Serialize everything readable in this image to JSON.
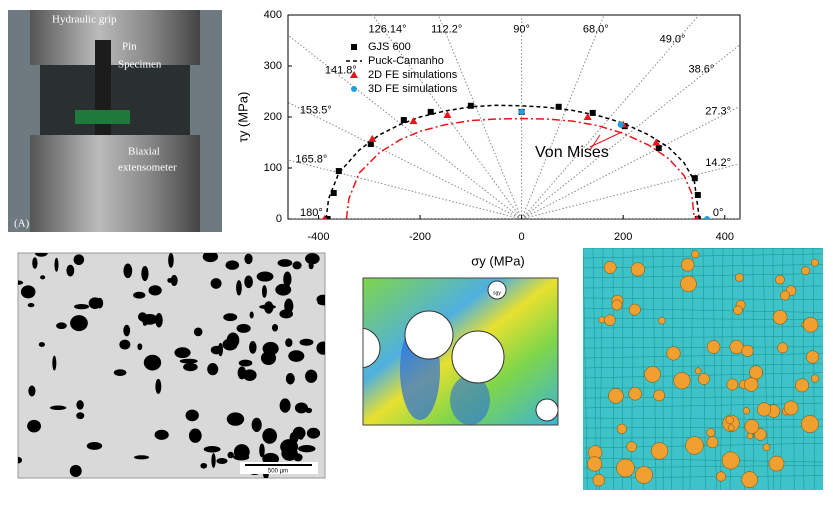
{
  "photo": {
    "labels": [
      "Hydraulic grip",
      "Pin",
      "Specimen",
      "Biaxial",
      "extensometer",
      "(A)"
    ]
  },
  "chart_data": {
    "type": "scatter",
    "xlabel": "σy (MPa)",
    "ylabel": "τy (MPa)",
    "xlim": [
      -460,
      430
    ],
    "ylim": [
      0,
      400
    ],
    "xticks": [
      -400,
      -200,
      0,
      200,
      400
    ],
    "yticks": [
      0,
      100,
      200,
      300,
      400
    ],
    "series": [
      {
        "name": "GJS 600",
        "color": "#000000",
        "kind": "square",
        "x": [
          -382,
          -370,
          -360,
          -297,
          -232,
          -179,
          -100,
          0,
          73,
          140,
          203,
          270,
          341,
          347,
          347
        ],
        "values": [
          0,
          51,
          94,
          147,
          194,
          210,
          222,
          210,
          220,
          208,
          182,
          139,
          80,
          47,
          0
        ]
      },
      {
        "name": "Puck-Camanho",
        "color": "#000000",
        "kind": "dash",
        "x": [
          -385,
          -380,
          -360,
          -320,
          -280,
          -240,
          -200,
          -150,
          -100,
          -50,
          0,
          50,
          100,
          150,
          200,
          250,
          290,
          320,
          340,
          350
        ],
        "values": [
          0,
          40,
          90,
          135,
          165,
          185,
          200,
          212,
          220,
          223,
          222,
          219,
          213,
          203,
          188,
          165,
          140,
          110,
          75,
          0
        ]
      },
      {
        "name": "2D FE simulations",
        "color": "#e8141b",
        "kind": "triangle",
        "x": [
          -388,
          -294,
          -213,
          -146,
          130,
          200,
          265,
          345
        ],
        "values": [
          0,
          157,
          192,
          204,
          200,
          185,
          150,
          0
        ]
      },
      {
        "name": "3D FE simulations",
        "color": "#1ba1e2",
        "kind": "circle",
        "x": [
          0,
          195,
          365
        ],
        "values": [
          210,
          185,
          0
        ]
      },
      {
        "name": "Von Mises",
        "color": "#e8141b",
        "kind": "dashdot",
        "legend": false,
        "x": [
          -345,
          -340,
          -320,
          -280,
          -240,
          -200,
          -150,
          -100,
          -50,
          0,
          50,
          100,
          150,
          200,
          250,
          290,
          320,
          335,
          340
        ],
        "values": [
          0,
          40,
          90,
          130,
          155,
          172,
          185,
          193,
          196,
          197,
          196,
          192,
          183,
          168,
          145,
          118,
          85,
          50,
          0
        ]
      }
    ],
    "radial_lines": [
      {
        "angle": 0,
        "label": "0°"
      },
      {
        "angle": 14.2,
        "label": "14.2°"
      },
      {
        "angle": 27.3,
        "label": "27.3°"
      },
      {
        "angle": 38.6,
        "label": "38.6°"
      },
      {
        "angle": 49.0,
        "label": "49.0°"
      },
      {
        "angle": 68.0,
        "label": "68.0°"
      },
      {
        "angle": 90,
        "label": "90°"
      },
      {
        "angle": 112.2,
        "label": "112.2°"
      },
      {
        "angle": 126.14,
        "label": "126.14°"
      },
      {
        "angle": 141.8,
        "label": "141.8°"
      },
      {
        "angle": 153.5,
        "label": "153.5°"
      },
      {
        "angle": 165.8,
        "label": "165.8°"
      },
      {
        "angle": 180,
        "label": "180°"
      }
    ]
  },
  "micrograph": {
    "scale": "500 µm"
  },
  "fe_model": {
    "label": "sgy"
  }
}
